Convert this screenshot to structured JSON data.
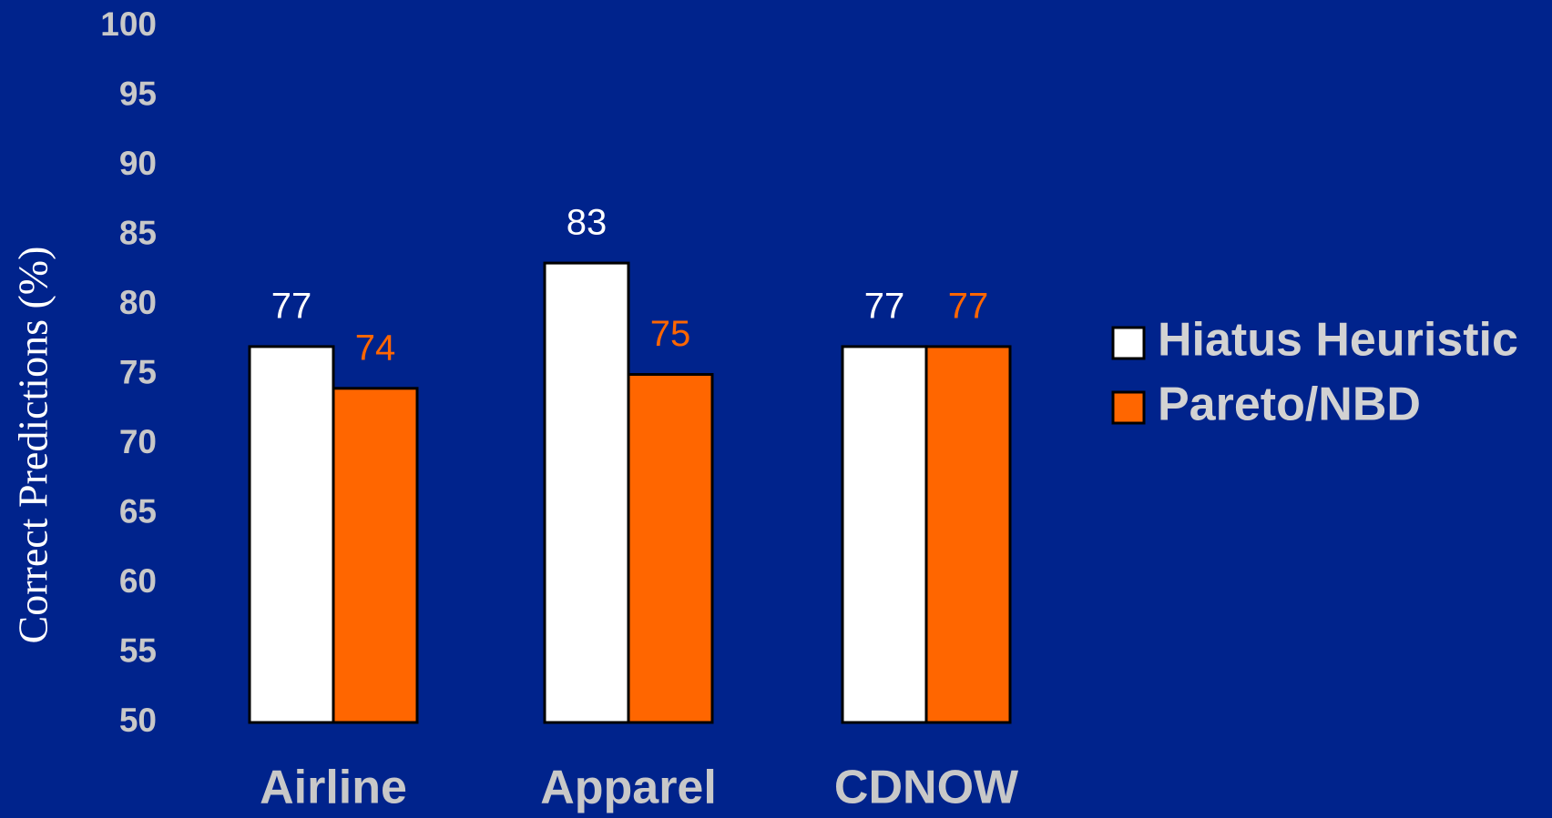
{
  "chart_data": {
    "type": "bar",
    "y_label": "Correct Predictions (%)",
    "categories": [
      "Airline",
      "Apparel",
      "CDNOW"
    ],
    "series": [
      {
        "name": "Hiatus Heuristic",
        "color": "#ffffff",
        "values": [
          77,
          83,
          77
        ]
      },
      {
        "name": "Pareto/NBD",
        "color": "#ff6600",
        "values": [
          74,
          75,
          77
        ]
      }
    ],
    "ylim": [
      50,
      100
    ],
    "yticks": [
      50,
      55,
      60,
      65,
      70,
      75,
      80,
      85,
      90,
      95,
      100
    ],
    "legend": "right"
  }
}
